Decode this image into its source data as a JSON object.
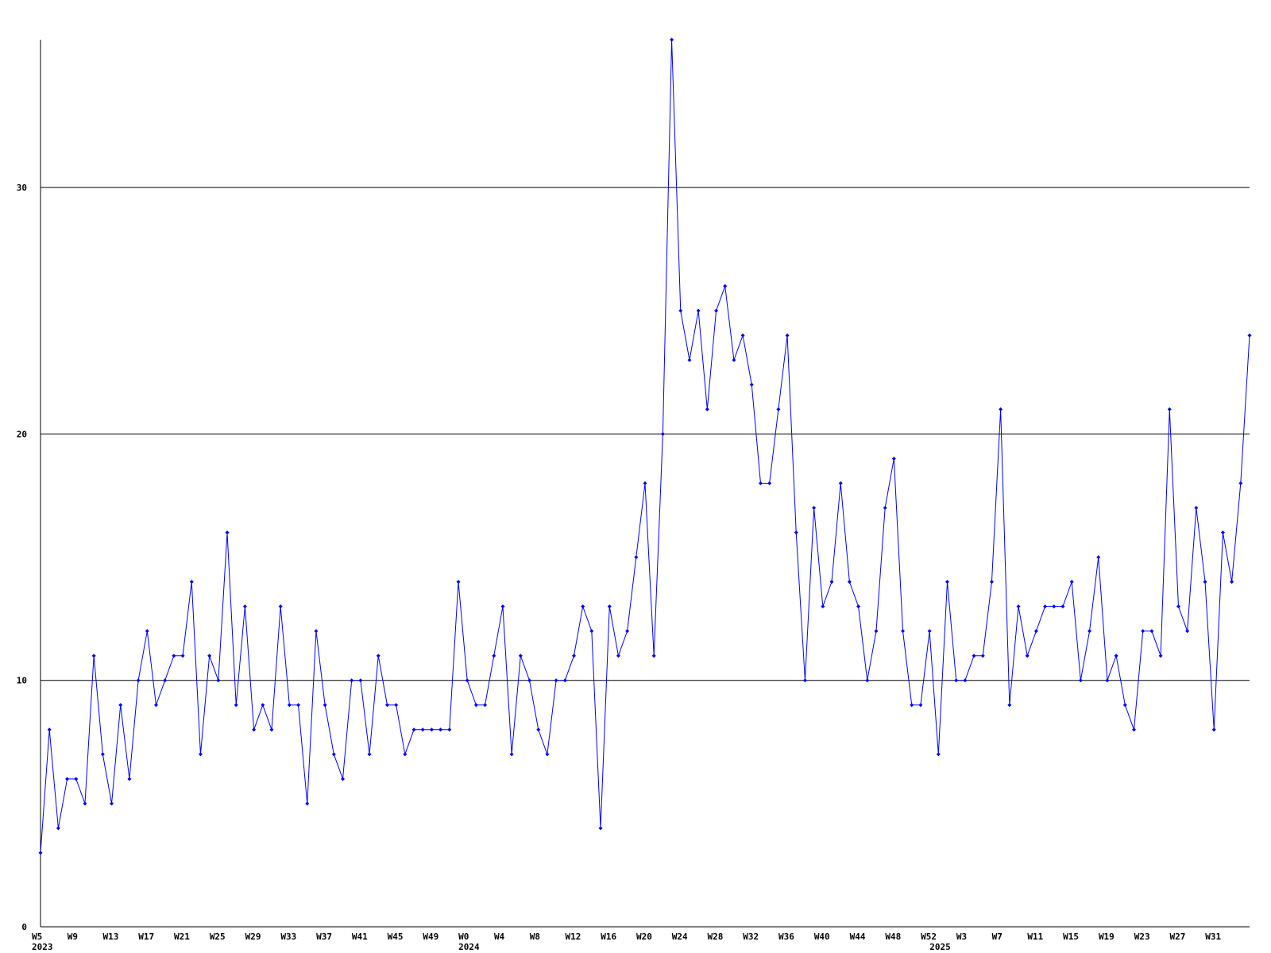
{
  "chart_data": {
    "type": "line",
    "categories": [
      "W5",
      null,
      null,
      null,
      "W9",
      null,
      null,
      null,
      "W13",
      null,
      null,
      null,
      "W17",
      null,
      null,
      null,
      "W21",
      null,
      null,
      null,
      "W25",
      null,
      null,
      null,
      "W29",
      null,
      null,
      null,
      "W33",
      null,
      null,
      null,
      "W37",
      null,
      null,
      null,
      "W41",
      null,
      null,
      null,
      "W45",
      null,
      null,
      null,
      "W49",
      null,
      null,
      null,
      "W0",
      null,
      null,
      null,
      "W4",
      null,
      null,
      null,
      "W8",
      null,
      null,
      null,
      "W12",
      null,
      null,
      null,
      "W16",
      null,
      null,
      null,
      "W20",
      null,
      null,
      null,
      "W24",
      null,
      null,
      null,
      "W28",
      null,
      null,
      null,
      "W32",
      null,
      null,
      null,
      "W36",
      null,
      null,
      null,
      "W40",
      null,
      null,
      null,
      "W44",
      null,
      null,
      null,
      "W48",
      null,
      null,
      null,
      "W52",
      null,
      null,
      null,
      "W3",
      null,
      null,
      null,
      "W7",
      null,
      null,
      null,
      "W11",
      null,
      null,
      null,
      "W15",
      null,
      null,
      null,
      "W19",
      null,
      null,
      null,
      "W23",
      null,
      null,
      null,
      "W27",
      null,
      null,
      null,
      "W31",
      null,
      null,
      null,
      null
    ],
    "group_labels": [
      "2023",
      null,
      null,
      null,
      null,
      null,
      null,
      null,
      null,
      null,
      null,
      null,
      null,
      null,
      null,
      null,
      null,
      null,
      null,
      null,
      null,
      null,
      null,
      null,
      null,
      null,
      null,
      null,
      null,
      null,
      null,
      null,
      null,
      null,
      null,
      null,
      null,
      null,
      null,
      null,
      null,
      null,
      null,
      null,
      null,
      null,
      null,
      null,
      "2024",
      null,
      null,
      null,
      null,
      null,
      null,
      null,
      null,
      null,
      null,
      null,
      null,
      null,
      null,
      null,
      null,
      null,
      null,
      null,
      null,
      null,
      null,
      null,
      null,
      null,
      null,
      null,
      null,
      null,
      null,
      null,
      null,
      null,
      null,
      null,
      null,
      null,
      null,
      null,
      null,
      null,
      null,
      null,
      null,
      null,
      null,
      null,
      null,
      null,
      null,
      null,
      null,
      "2025",
      null,
      null,
      null,
      null,
      null,
      null,
      null,
      null,
      null,
      null,
      null,
      null,
      null,
      null,
      null,
      null,
      null,
      null,
      null,
      null,
      null,
      null,
      null,
      null,
      null,
      null,
      null,
      null,
      null,
      null,
      null,
      null,
      null,
      null,
      null
    ],
    "series": [
      {
        "color": "#0000ff",
        "values": [
          3,
          8,
          4,
          6,
          6,
          5,
          11,
          7,
          5,
          9,
          6,
          10,
          12,
          9,
          10,
          11,
          11,
          14,
          7,
          11,
          10,
          16,
          9,
          13,
          8,
          9,
          8,
          13,
          9,
          9,
          5,
          12,
          9,
          7,
          6,
          10,
          10,
          7,
          11,
          9,
          9,
          7,
          8,
          8,
          8,
          8,
          8,
          14,
          10,
          9,
          9,
          11,
          13,
          7,
          11,
          10,
          8,
          7,
          10,
          10,
          11,
          13,
          12,
          4,
          13,
          11,
          12,
          15,
          18,
          11,
          20,
          36,
          25,
          23,
          25,
          21,
          25,
          26,
          23,
          24,
          22,
          18,
          18,
          21,
          24,
          16,
          10,
          17,
          13,
          14,
          18,
          14,
          13,
          10,
          12,
          17,
          19,
          12,
          9,
          9,
          12,
          7,
          14,
          10,
          10,
          11,
          11,
          14,
          21,
          9,
          13,
          11,
          12,
          13,
          13,
          13,
          14,
          10,
          12,
          15,
          10,
          11,
          9,
          8,
          12,
          12,
          11,
          21,
          13,
          12,
          17,
          14,
          8,
          16,
          14,
          18,
          24
        ]
      }
    ],
    "ylim": [
      0,
      36
    ],
    "yticks": [
      0,
      10,
      20,
      30
    ],
    "grid": true,
    "grid_color": "#000000",
    "axis_color": "#000000"
  }
}
